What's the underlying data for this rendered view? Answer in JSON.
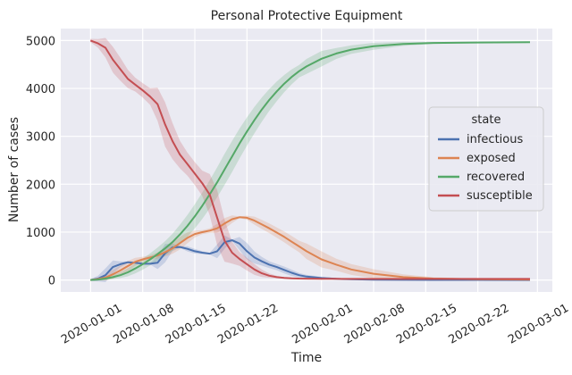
{
  "chart_data": {
    "type": "line",
    "title": "Personal Protective Equipment",
    "xlabel": "Time",
    "ylabel": "Number of cases",
    "x_axis_type": "date",
    "xlim": [
      "2019-12-28",
      "2020-03-03"
    ],
    "ylim": [
      -250,
      5250
    ],
    "x_ticks": [
      "2020-01-01",
      "2020-01-08",
      "2020-01-15",
      "2020-01-22",
      "2020-02-01",
      "2020-02-08",
      "2020-02-15",
      "2020-02-22",
      "2020-03-01"
    ],
    "y_ticks": [
      0,
      1000,
      2000,
      3000,
      4000,
      5000
    ],
    "grid": true,
    "background": "#eaeaf2",
    "legend": {
      "title": "state",
      "placement": "center-right"
    },
    "series": [
      {
        "name": "infectious",
        "color": "#4c72b0",
        "band": true,
        "points": [
          [
            "2020-01-01",
            0
          ],
          [
            "2020-01-02",
            30
          ],
          [
            "2020-01-03",
            100
          ],
          [
            "2020-01-04",
            270
          ],
          [
            "2020-01-05",
            330
          ],
          [
            "2020-01-06",
            370
          ],
          [
            "2020-01-07",
            360
          ],
          [
            "2020-01-08",
            340
          ],
          [
            "2020-01-09",
            340
          ],
          [
            "2020-01-10",
            360
          ],
          [
            "2020-01-11",
            560
          ],
          [
            "2020-01-12",
            680
          ],
          [
            "2020-01-13",
            690
          ],
          [
            "2020-01-14",
            650
          ],
          [
            "2020-01-15",
            600
          ],
          [
            "2020-01-16",
            570
          ],
          [
            "2020-01-17",
            550
          ],
          [
            "2020-01-18",
            600
          ],
          [
            "2020-01-19",
            790
          ],
          [
            "2020-01-20",
            830
          ],
          [
            "2020-01-21",
            760
          ],
          [
            "2020-01-22",
            600
          ],
          [
            "2020-01-23",
            470
          ],
          [
            "2020-01-24",
            390
          ],
          [
            "2020-01-25",
            320
          ],
          [
            "2020-01-26",
            270
          ],
          [
            "2020-01-27",
            210
          ],
          [
            "2020-01-28",
            150
          ],
          [
            "2020-01-29",
            100
          ],
          [
            "2020-01-30",
            70
          ],
          [
            "2020-02-01",
            40
          ],
          [
            "2020-02-03",
            25
          ],
          [
            "2020-02-05",
            15
          ],
          [
            "2020-02-08",
            8
          ],
          [
            "2020-02-12",
            4
          ],
          [
            "2020-02-16",
            2
          ],
          [
            "2020-02-22",
            1
          ],
          [
            "2020-02-29",
            0
          ]
        ]
      },
      {
        "name": "exposed",
        "color": "#dd8452",
        "band": true,
        "points": [
          [
            "2020-01-01",
            0
          ],
          [
            "2020-01-02",
            20
          ],
          [
            "2020-01-03",
            50
          ],
          [
            "2020-01-04",
            120
          ],
          [
            "2020-01-05",
            200
          ],
          [
            "2020-01-06",
            290
          ],
          [
            "2020-01-07",
            380
          ],
          [
            "2020-01-08",
            430
          ],
          [
            "2020-01-09",
            470
          ],
          [
            "2020-01-10",
            510
          ],
          [
            "2020-01-11",
            580
          ],
          [
            "2020-01-12",
            660
          ],
          [
            "2020-01-13",
            770
          ],
          [
            "2020-01-14",
            880
          ],
          [
            "2020-01-15",
            960
          ],
          [
            "2020-01-16",
            1000
          ],
          [
            "2020-01-17",
            1030
          ],
          [
            "2020-01-18",
            1080
          ],
          [
            "2020-01-19",
            1180
          ],
          [
            "2020-01-20",
            1270
          ],
          [
            "2020-01-21",
            1310
          ],
          [
            "2020-01-22",
            1300
          ],
          [
            "2020-01-23",
            1240
          ],
          [
            "2020-01-24",
            1160
          ],
          [
            "2020-01-25",
            1080
          ],
          [
            "2020-01-26",
            990
          ],
          [
            "2020-01-27",
            900
          ],
          [
            "2020-01-28",
            800
          ],
          [
            "2020-01-29",
            700
          ],
          [
            "2020-01-30",
            600
          ],
          [
            "2020-02-01",
            430
          ],
          [
            "2020-02-03",
            320
          ],
          [
            "2020-02-05",
            220
          ],
          [
            "2020-02-08",
            130
          ],
          [
            "2020-02-12",
            60
          ],
          [
            "2020-02-16",
            30
          ],
          [
            "2020-02-22",
            15
          ],
          [
            "2020-02-29",
            10
          ]
        ]
      },
      {
        "name": "recovered",
        "color": "#55a868",
        "band": true,
        "points": [
          [
            "2020-01-01",
            0
          ],
          [
            "2020-01-02",
            10
          ],
          [
            "2020-01-03",
            30
          ],
          [
            "2020-01-04",
            60
          ],
          [
            "2020-01-05",
            100
          ],
          [
            "2020-01-06",
            160
          ],
          [
            "2020-01-07",
            240
          ],
          [
            "2020-01-08",
            330
          ],
          [
            "2020-01-09",
            430
          ],
          [
            "2020-01-10",
            540
          ],
          [
            "2020-01-11",
            660
          ],
          [
            "2020-01-12",
            790
          ],
          [
            "2020-01-13",
            950
          ],
          [
            "2020-01-14",
            1130
          ],
          [
            "2020-01-15",
            1330
          ],
          [
            "2020-01-16",
            1550
          ],
          [
            "2020-01-17",
            1790
          ],
          [
            "2020-01-18",
            2040
          ],
          [
            "2020-01-19",
            2310
          ],
          [
            "2020-01-20",
            2580
          ],
          [
            "2020-01-21",
            2850
          ],
          [
            "2020-01-22",
            3100
          ],
          [
            "2020-01-23",
            3340
          ],
          [
            "2020-01-24",
            3560
          ],
          [
            "2020-01-25",
            3760
          ],
          [
            "2020-01-26",
            3940
          ],
          [
            "2020-01-27",
            4100
          ],
          [
            "2020-01-28",
            4240
          ],
          [
            "2020-01-29",
            4360
          ],
          [
            "2020-01-30",
            4460
          ],
          [
            "2020-02-01",
            4620
          ],
          [
            "2020-02-03",
            4730
          ],
          [
            "2020-02-05",
            4810
          ],
          [
            "2020-02-08",
            4880
          ],
          [
            "2020-02-12",
            4930
          ],
          [
            "2020-02-16",
            4950
          ],
          [
            "2020-02-22",
            4960
          ],
          [
            "2020-02-29",
            4965
          ]
        ]
      },
      {
        "name": "susceptible",
        "color": "#c44e52",
        "band": true,
        "points": [
          [
            "2020-01-01",
            5000
          ],
          [
            "2020-01-02",
            4940
          ],
          [
            "2020-01-03",
            4850
          ],
          [
            "2020-01-04",
            4600
          ],
          [
            "2020-01-05",
            4400
          ],
          [
            "2020-01-06",
            4200
          ],
          [
            "2020-01-07",
            4080
          ],
          [
            "2020-01-08",
            3960
          ],
          [
            "2020-01-09",
            3830
          ],
          [
            "2020-01-10",
            3670
          ],
          [
            "2020-01-11",
            3250
          ],
          [
            "2020-01-12",
            2900
          ],
          [
            "2020-01-13",
            2620
          ],
          [
            "2020-01-14",
            2420
          ],
          [
            "2020-01-15",
            2220
          ],
          [
            "2020-01-16",
            2020
          ],
          [
            "2020-01-17",
            1780
          ],
          [
            "2020-01-18",
            1300
          ],
          [
            "2020-01-19",
            820
          ],
          [
            "2020-01-20",
            570
          ],
          [
            "2020-01-21",
            440
          ],
          [
            "2020-01-22",
            330
          ],
          [
            "2020-01-23",
            220
          ],
          [
            "2020-01-24",
            140
          ],
          [
            "2020-01-25",
            90
          ],
          [
            "2020-01-26",
            60
          ],
          [
            "2020-01-27",
            45
          ],
          [
            "2020-01-28",
            35
          ],
          [
            "2020-01-29",
            30
          ],
          [
            "2020-01-30",
            28
          ],
          [
            "2020-02-01",
            25
          ],
          [
            "2020-02-03",
            24
          ],
          [
            "2020-02-05",
            23
          ],
          [
            "2020-02-08",
            22
          ],
          [
            "2020-02-12",
            22
          ],
          [
            "2020-02-16",
            22
          ],
          [
            "2020-02-22",
            22
          ],
          [
            "2020-02-29",
            22
          ]
        ]
      }
    ]
  }
}
